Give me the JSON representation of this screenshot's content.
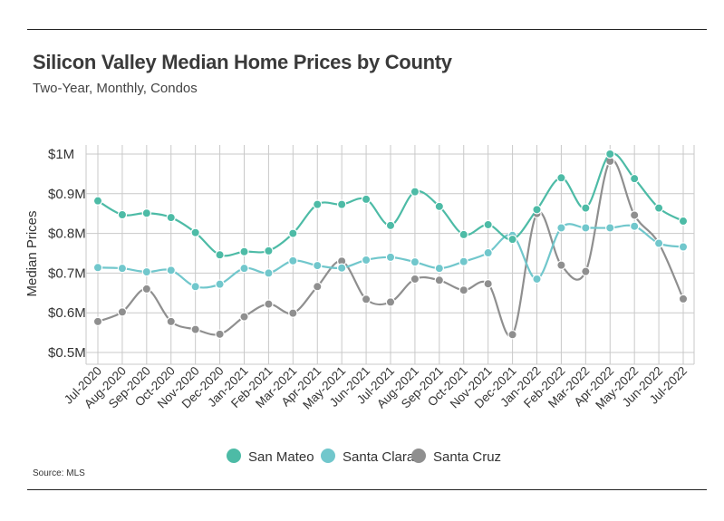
{
  "header": {
    "title": "Silicon Valley Median Home Prices by County",
    "subtitle": "Two-Year, Monthly, Condos"
  },
  "footer": {
    "source": "Source:  MLS"
  },
  "chart_data": {
    "type": "line",
    "ylabel": "Median Prices",
    "ylim": [
      0.5,
      1.0
    ],
    "yticks": [
      0.5,
      0.6,
      0.7,
      0.8,
      0.9,
      1.0
    ],
    "ytick_labels": [
      "$0.5M",
      "$0.6M",
      "$0.7M",
      "$0.8M",
      "$0.9M",
      "$1M"
    ],
    "grid": true,
    "legend_position": "bottom-center",
    "categories": [
      "Jul-2020",
      "Aug-2020",
      "Sep-2020",
      "Oct-2020",
      "Nov-2020",
      "Dec-2020",
      "Jan-2021",
      "Feb-2021",
      "Mar-2021",
      "Apr-2021",
      "May-2021",
      "Jun-2021",
      "Jul-2021",
      "Aug-2021",
      "Sep-2021",
      "Oct-2021",
      "Nov-2021",
      "Dec-2021",
      "Jan-2022",
      "Feb-2022",
      "Mar-2022",
      "Apr-2022",
      "May-2022",
      "Jun-2022",
      "Jul-2022"
    ],
    "series": [
      {
        "name": "San Mateo",
        "color": "#4dbba6",
        "values": [
          0.882,
          0.847,
          0.851,
          0.84,
          0.802,
          0.746,
          0.754,
          0.756,
          0.8,
          0.873,
          0.873,
          0.886,
          0.82,
          0.905,
          0.868,
          0.797,
          0.822,
          0.785,
          0.86,
          0.94,
          0.864,
          1.0,
          0.938,
          0.864,
          0.831
        ]
      },
      {
        "name": "Santa Clara",
        "color": "#71c7cc",
        "values": [
          0.714,
          0.712,
          0.703,
          0.707,
          0.666,
          0.672,
          0.712,
          0.7,
          0.731,
          0.719,
          0.713,
          0.733,
          0.74,
          0.728,
          0.712,
          0.729,
          0.751,
          0.795,
          0.685,
          0.814,
          0.814,
          0.814,
          0.818,
          0.775,
          0.766
        ]
      },
      {
        "name": "Santa Cruz",
        "color": "#8f8f8f",
        "values": [
          0.578,
          0.602,
          0.66,
          0.578,
          0.558,
          0.546,
          0.59,
          0.622,
          0.599,
          0.666,
          0.73,
          0.634,
          0.627,
          0.685,
          0.682,
          0.657,
          0.673,
          0.545,
          0.85,
          0.72,
          0.704,
          0.982,
          0.846,
          0.775,
          0.635
        ]
      }
    ]
  }
}
